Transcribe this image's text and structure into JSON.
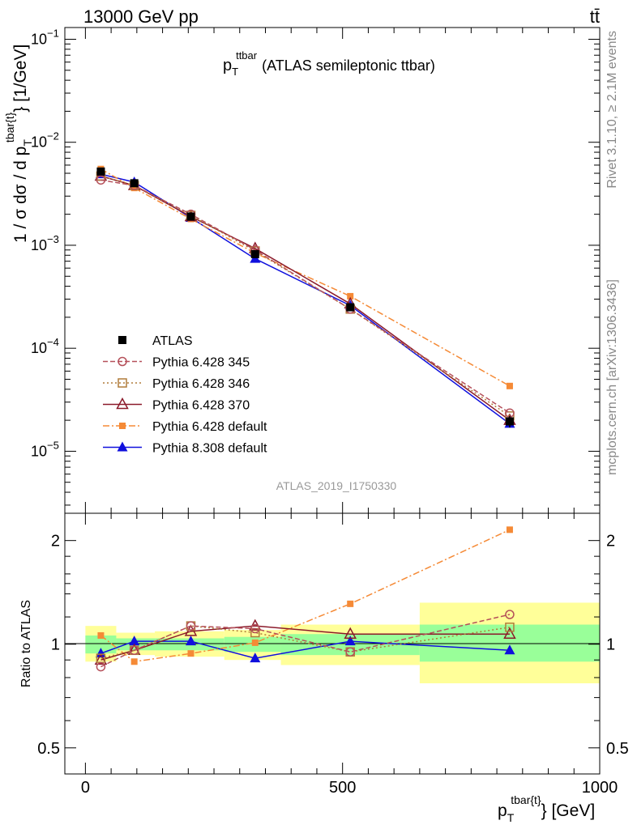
{
  "header": {
    "energy_label": "13000 GeV pp",
    "process_label": "tt̄"
  },
  "side_texts": {
    "rivet": "Rivet 3.1.10, ≥ 2.1M events",
    "mcplots": "mcplots.cern.ch [arXiv:1306.3436]"
  },
  "colors": {
    "ATLAS": "#000000",
    "Pythia 6.428 345": "#b5505a",
    "Pythia 6.428 346": "#b07c3a",
    "Pythia 6.428 370": "#8b1a2a",
    "Pythia 6.428 default": "#f58a36",
    "Pythia 8.308 default": "#1010dd",
    "band_inner": "#99ff99",
    "band_outer": "#ffff99"
  },
  "chart_data": [
    {
      "type": "line",
      "panel": "main",
      "title_main": "p",
      "title_sub": "T",
      "title_sup": "ttbar",
      "title_rest": "(ATLAS semileptonic ttbar)",
      "ylabel": "1 / σ dσ / d p",
      "ylabel_sub": "T",
      "ylabel_sup": "tbar{t}",
      "ylabel_unit": "} [1/GeV]",
      "yscale": "log",
      "ylim": [
        2.5e-06,
        0.13
      ],
      "xlim": [
        -40,
        1000
      ],
      "y_ticks": [
        {
          "value": 0.1,
          "label": "10",
          "exp": "−1"
        },
        {
          "value": 0.01,
          "label": "10",
          "exp": "−2"
        },
        {
          "value": 0.001,
          "label": "10",
          "exp": "−3"
        },
        {
          "value": 0.0001,
          "label": "10",
          "exp": "−4"
        },
        {
          "value": 1e-05,
          "label": "10",
          "exp": "−5"
        }
      ],
      "watermark": "ATLAS_2019_I1750330",
      "legend_position": "middle-left",
      "x": [
        30,
        95,
        205,
        330,
        515,
        825
      ],
      "series": [
        {
          "name": "ATLAS",
          "values": [
            0.0052,
            0.004,
            0.0019,
            0.00082,
            0.00025,
            1.95e-05
          ],
          "errors": [
            0.0003,
            0.0002,
            0.0001,
            5e-05,
            2e-05,
            2.5e-06
          ],
          "marker": "square",
          "dash": "none"
        },
        {
          "name": "Pythia 6.428 345",
          "values": [
            0.0043,
            0.0038,
            0.002,
            0.0009,
            0.00024,
            2.35e-05
          ],
          "marker": "circle-open",
          "dash": "6,3"
        },
        {
          "name": "Pythia 6.428 346",
          "values": [
            0.0047,
            0.0038,
            0.00195,
            0.00088,
            0.00024,
            2.2e-05
          ],
          "marker": "square-open",
          "dash": "2,3"
        },
        {
          "name": "Pythia 6.428 370",
          "values": [
            0.0047,
            0.0038,
            0.0019,
            0.00093,
            0.00027,
            2e-05
          ],
          "marker": "triangle-open",
          "dash": "none"
        },
        {
          "name": "Pythia 6.428 default",
          "values": [
            0.0055,
            0.0036,
            0.0018,
            0.00084,
            0.00032,
            4.3e-05
          ],
          "marker": "square-small",
          "dash": "8,3,2,3"
        },
        {
          "name": "Pythia 8.308 default",
          "values": [
            0.0049,
            0.0041,
            0.00185,
            0.00074,
            0.00026,
            1.85e-05
          ],
          "marker": "triangle",
          "dash": "none"
        }
      ]
    },
    {
      "type": "line",
      "panel": "ratio",
      "ylabel": "Ratio to ATLAS",
      "xlabel_main": "p",
      "xlabel_sub": "T",
      "xlabel_sup": "tbar{t}",
      "xlabel_unit": "} [GeV]",
      "yscale": "log",
      "ylim": [
        0.42,
        2.4
      ],
      "xlim": [
        -40,
        1000
      ],
      "x_ticks": [
        0,
        500,
        1000
      ],
      "y_ticks": [
        0.5,
        1,
        2
      ],
      "bins": [
        {
          "lo": 0,
          "hi": 60,
          "band_inner": [
            0.94,
            1.06
          ],
          "band_outer": [
            0.89,
            1.13
          ]
        },
        {
          "lo": 60,
          "hi": 135,
          "band_inner": [
            0.96,
            1.04
          ],
          "band_outer": [
            0.93,
            1.08
          ]
        },
        {
          "lo": 135,
          "hi": 270,
          "band_inner": [
            0.96,
            1.04
          ],
          "band_outer": [
            0.92,
            1.09
          ]
        },
        {
          "lo": 270,
          "hi": 380,
          "band_inner": [
            0.95,
            1.05
          ],
          "band_outer": [
            0.9,
            1.1
          ]
        },
        {
          "lo": 380,
          "hi": 650,
          "band_inner": [
            0.93,
            1.07
          ],
          "band_outer": [
            0.87,
            1.14
          ]
        },
        {
          "lo": 650,
          "hi": 1000,
          "band_inner": [
            0.89,
            1.14
          ],
          "band_outer": [
            0.77,
            1.32
          ]
        }
      ],
      "x": [
        30,
        95,
        205,
        330,
        515,
        825
      ],
      "series": [
        {
          "name": "Pythia 6.428 345",
          "values": [
            0.86,
            0.96,
            1.13,
            1.11,
            0.95,
            1.22
          ]
        },
        {
          "name": "Pythia 6.428 346",
          "values": [
            0.91,
            0.96,
            1.13,
            1.08,
            0.95,
            1.12
          ]
        },
        {
          "name": "Pythia 6.428 370",
          "values": [
            0.9,
            0.96,
            1.09,
            1.13,
            1.07,
            1.07
          ]
        },
        {
          "name": "Pythia 6.428 default",
          "values": [
            1.06,
            0.89,
            0.94,
            1.01,
            1.31,
            2.15
          ]
        },
        {
          "name": "Pythia 8.308 default",
          "values": [
            0.94,
            1.02,
            1.02,
            0.91,
            1.02,
            0.96
          ]
        }
      ]
    }
  ]
}
